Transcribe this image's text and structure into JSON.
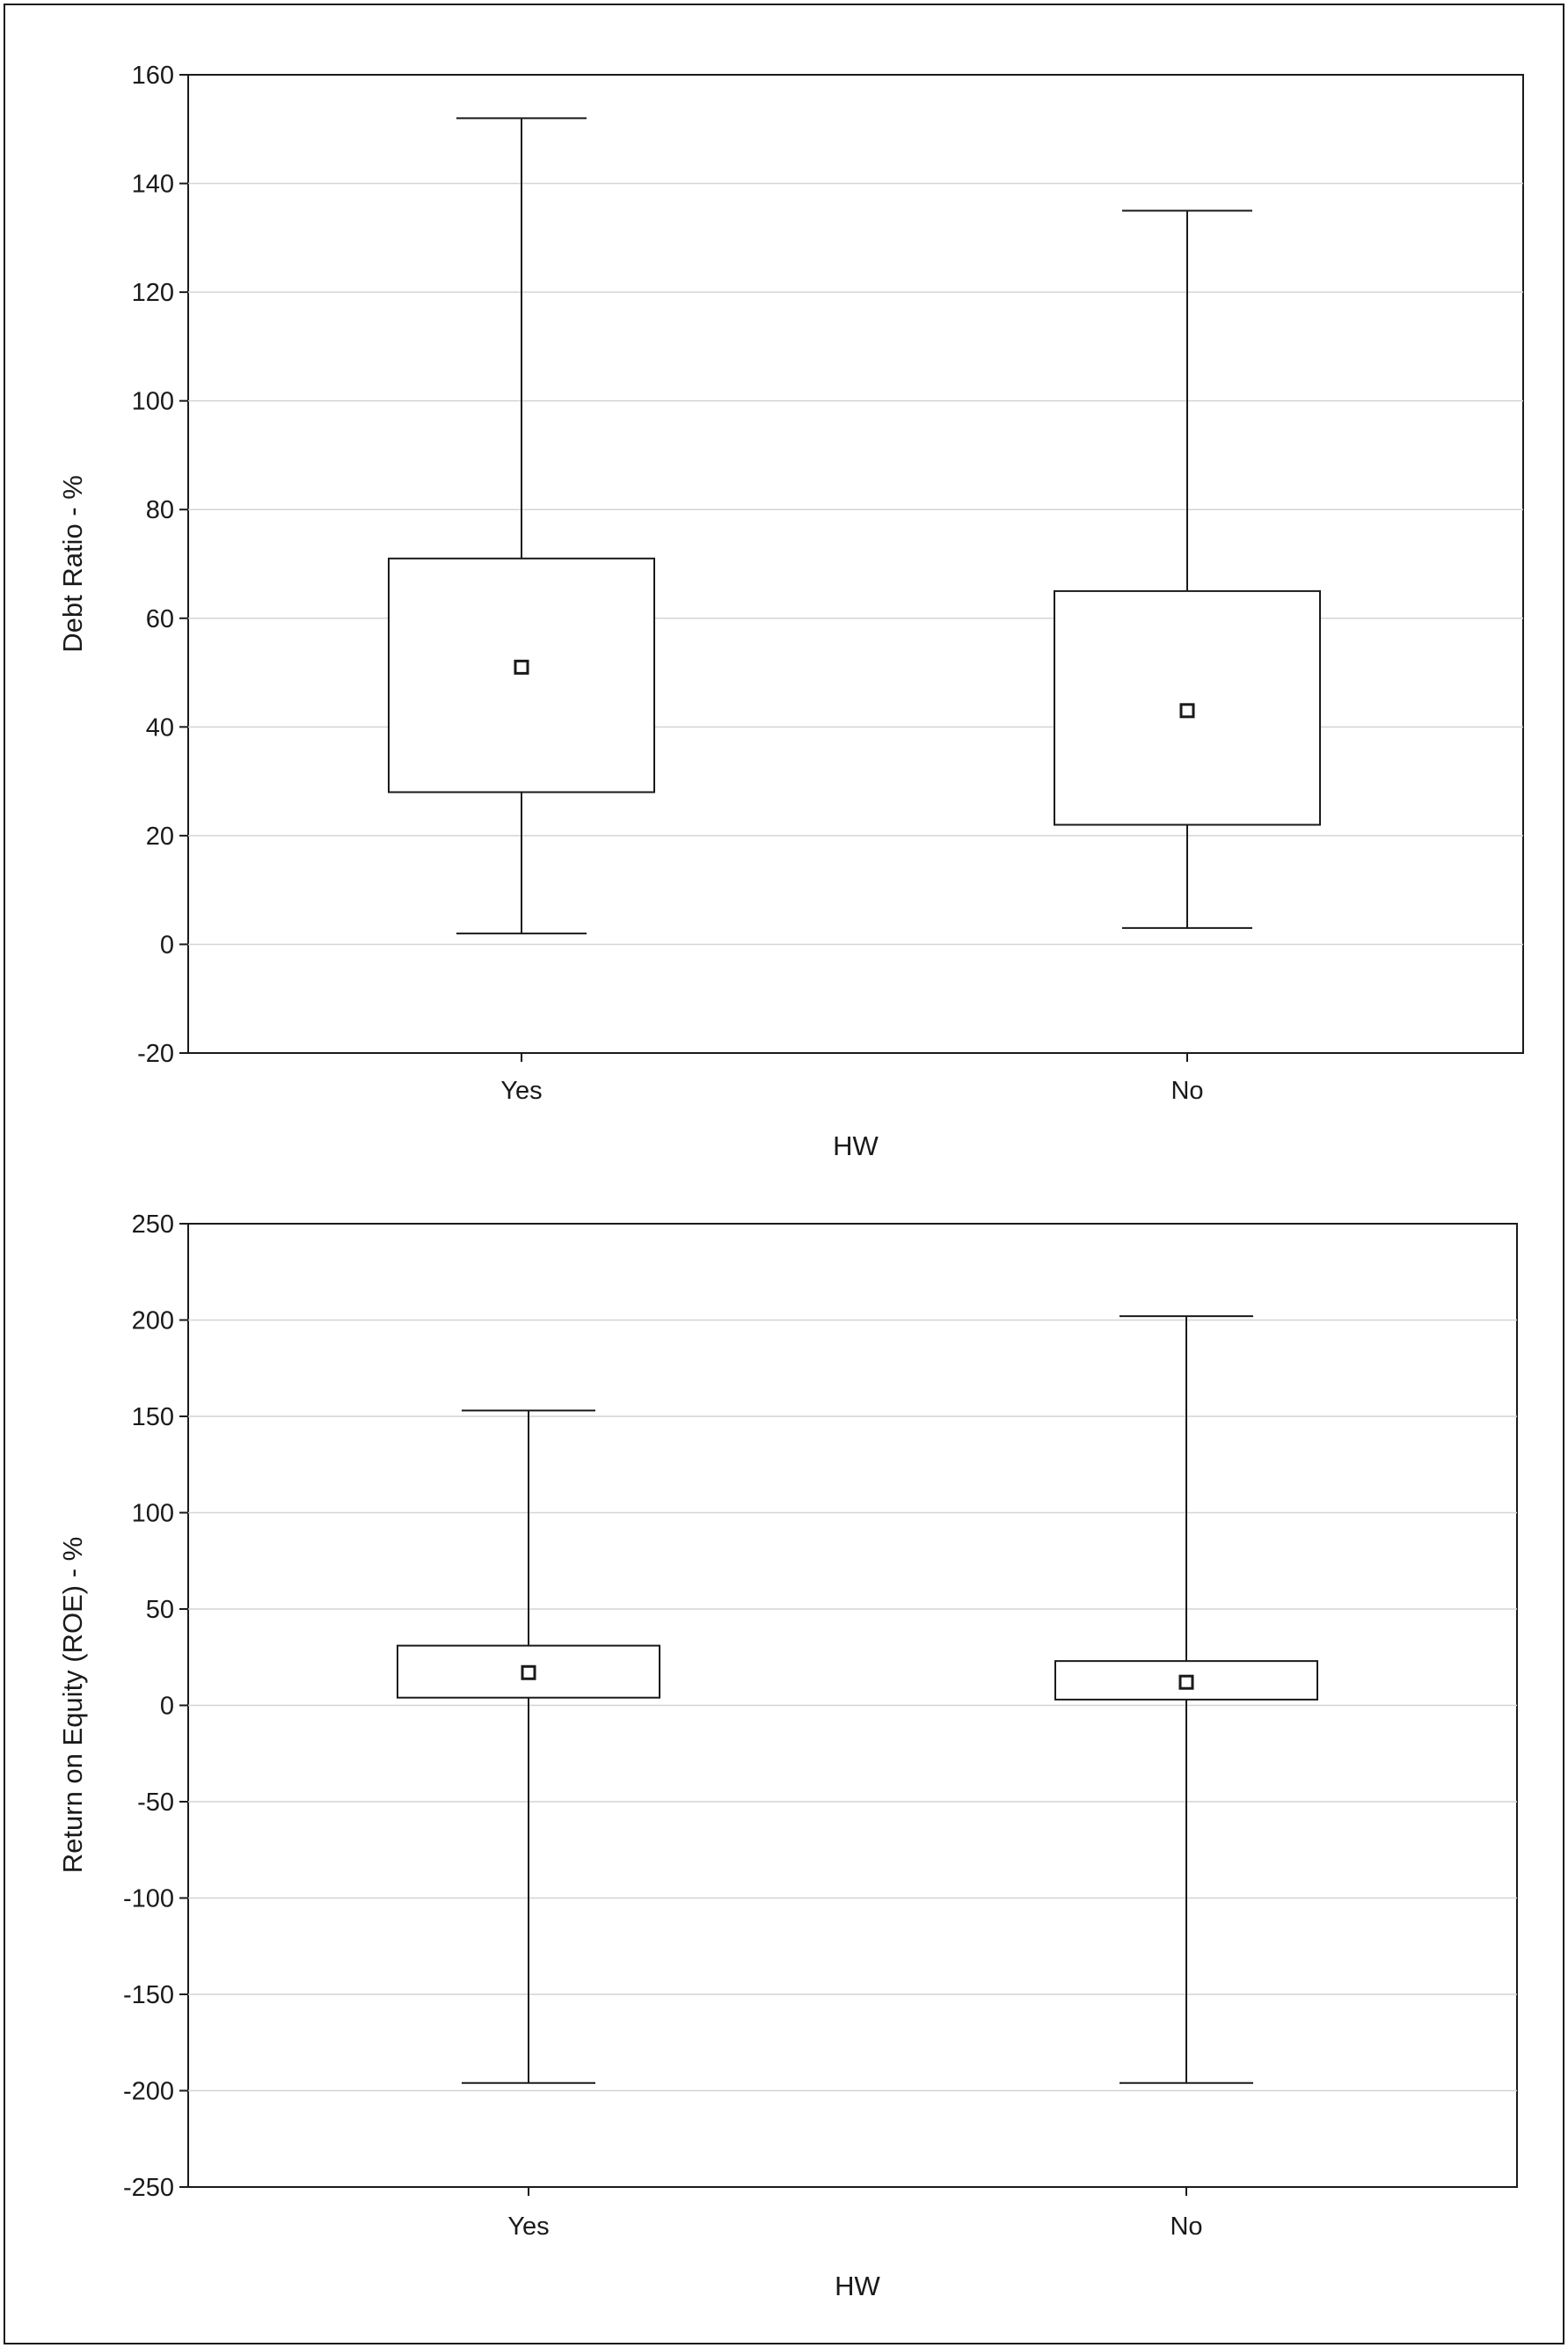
{
  "chart_data": [
    {
      "type": "box",
      "title": "",
      "xlabel": "HW",
      "ylabel": "Debt Ratio - %",
      "ylim": [
        -20,
        160
      ],
      "yticks": [
        -20,
        0,
        20,
        40,
        60,
        80,
        100,
        120,
        140,
        160
      ],
      "grid": true,
      "categories": [
        "Yes",
        "No"
      ],
      "boxes": [
        {
          "category": "Yes",
          "whisker_low": 2,
          "q1": 28,
          "median": 51,
          "q3": 71,
          "whisker_high": 152
        },
        {
          "category": "No",
          "whisker_low": 3,
          "q1": 22,
          "median": 43,
          "q3": 65,
          "whisker_high": 135
        }
      ]
    },
    {
      "type": "box",
      "title": "",
      "xlabel": "HW",
      "ylabel": "Return on Equity (ROE) - %",
      "ylim": [
        -250,
        250
      ],
      "yticks": [
        -250,
        -200,
        -150,
        -100,
        -50,
        0,
        50,
        100,
        150,
        200,
        250
      ],
      "grid": true,
      "categories": [
        "Yes",
        "No"
      ],
      "boxes": [
        {
          "category": "Yes",
          "whisker_low": -196,
          "q1": 4,
          "median": 17,
          "q3": 31,
          "whisker_high": 153
        },
        {
          "category": "No",
          "whisker_low": -196,
          "q1": 3,
          "median": 12,
          "q3": 23,
          "whisker_high": 202
        }
      ]
    }
  ]
}
